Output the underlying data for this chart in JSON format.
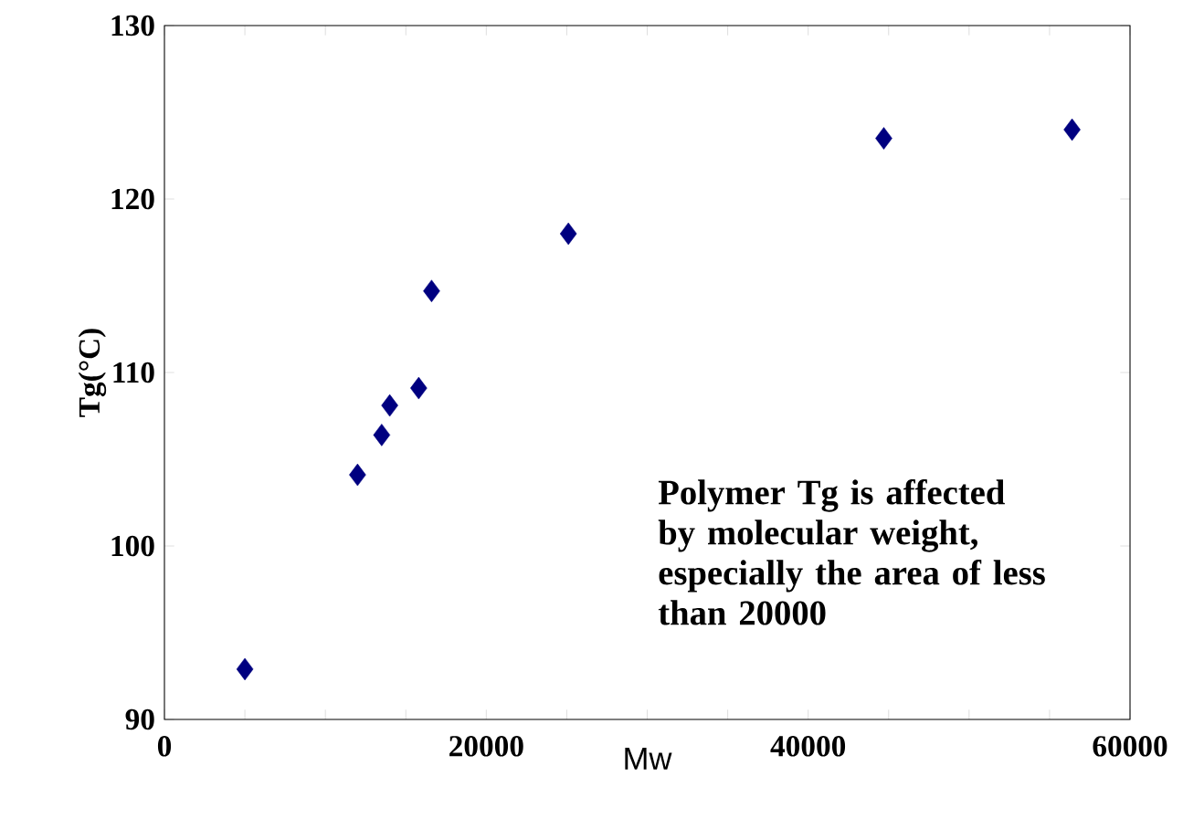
{
  "chart_data": {
    "type": "scatter",
    "xlabel": "Mw",
    "ylabel": "Tg(°C)",
    "annotations": [
      "Polymer Tg is affected by molecular weight, especially the area of less than 20000"
    ],
    "x": [
      5000,
      12000,
      13500,
      14000,
      15800,
      16600,
      25100,
      44700,
      56400
    ],
    "series": [
      {
        "color": "#000080",
        "values": [
          92.9,
          104.1,
          106.4,
          108.1,
          109.1,
          114.7,
          118.0,
          123.5,
          124.0
        ]
      }
    ],
    "marker": "diamond",
    "xlim": [
      0,
      60000
    ],
    "ylim": [
      90,
      130
    ],
    "xticks": [
      0,
      {
        "value": 5000,
        "label": null
      },
      {
        "value": 10000,
        "label": null
      },
      {
        "value": 15000,
        "label": null
      },
      20000,
      {
        "value": 25000,
        "label": null
      },
      {
        "value": 30000,
        "label": null
      },
      {
        "value": 35000,
        "label": null
      },
      40000,
      {
        "value": 45000,
        "label": null
      },
      {
        "value": 50000,
        "label": null
      },
      {
        "value": 55000,
        "label": null
      },
      60000
    ],
    "yticks": [
      90,
      100,
      110,
      120,
      130
    ]
  }
}
